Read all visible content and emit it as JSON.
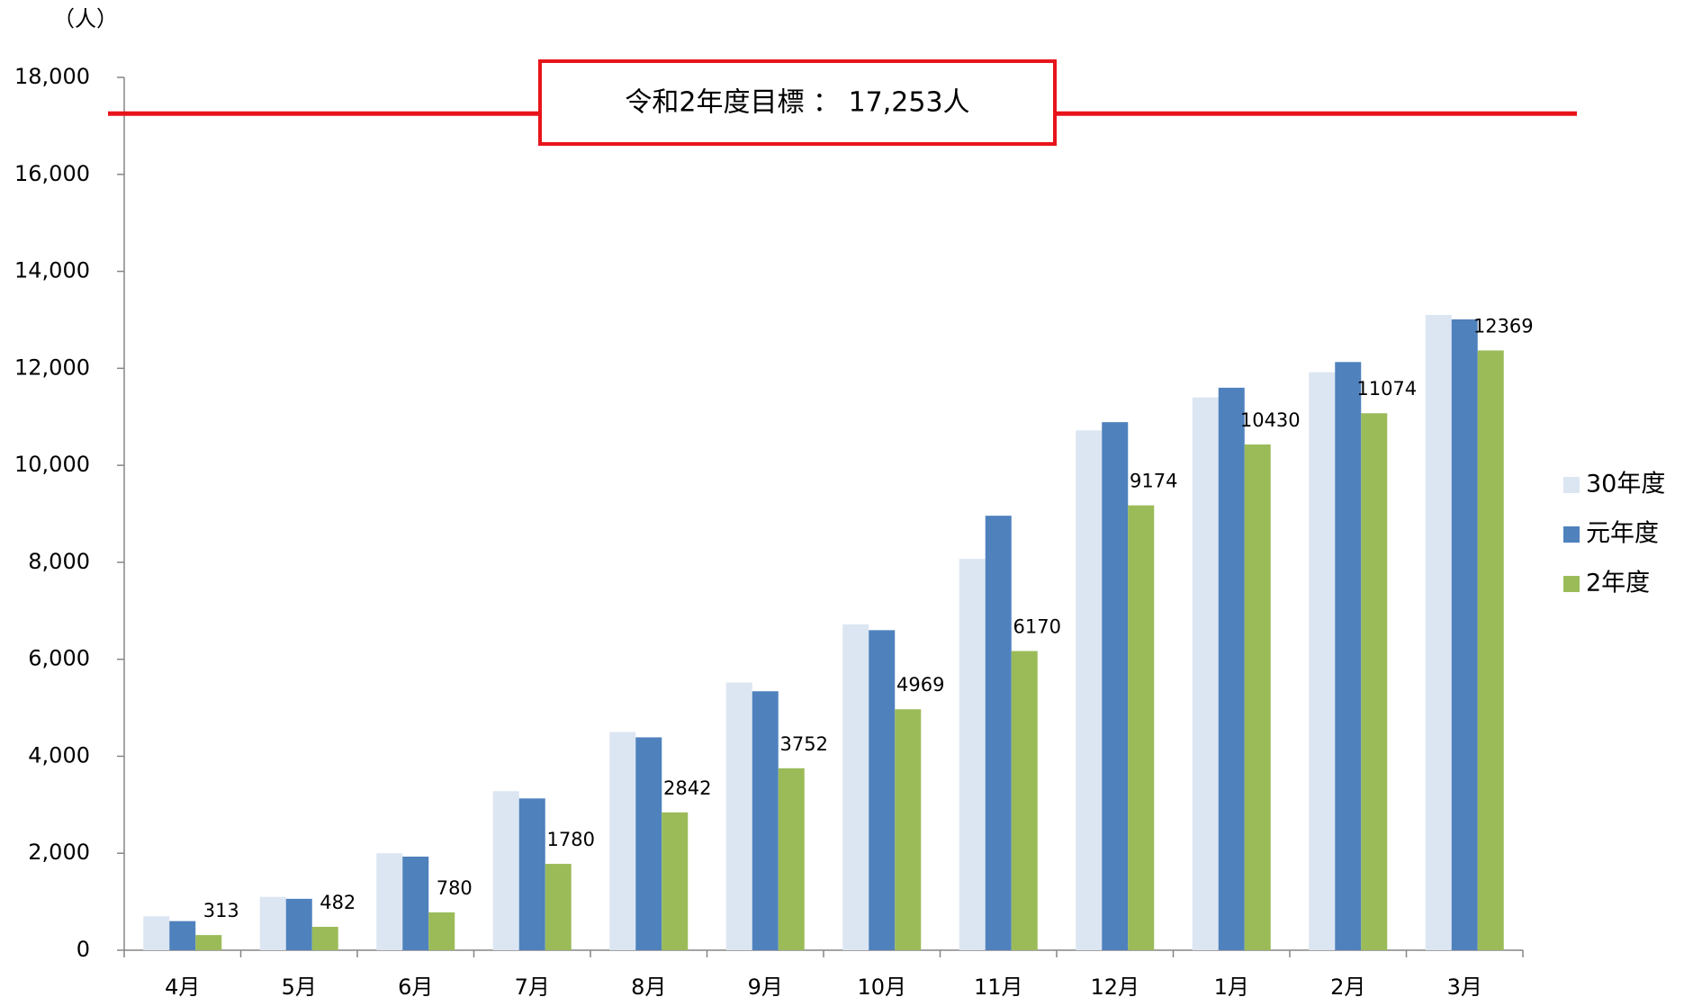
{
  "chart_data": {
    "type": "bar",
    "y_unit_label": "（人）",
    "target": {
      "value": 17253,
      "label": "令和2年度目標 ： 17,253人",
      "color": "#e8141b"
    },
    "categories": [
      "4月",
      "5月",
      "6月",
      "7月",
      "8月",
      "9月",
      "10月",
      "11月",
      "12月",
      "1月",
      "2月",
      "3月"
    ],
    "series": [
      {
        "name": "30年度",
        "color": "#dce6f2",
        "values": [
          700,
          1100,
          2000,
          3280,
          4500,
          5520,
          6720,
          8070,
          10720,
          11400,
          11920,
          13100
        ]
      },
      {
        "name": "元年度",
        "color": "#4f81bd",
        "values": [
          600,
          1060,
          1930,
          3130,
          4390,
          5340,
          6600,
          8960,
          10890,
          11600,
          12130,
          13010
        ]
      },
      {
        "name": "2年度",
        "color": "#9bbb59",
        "values": [
          313,
          482,
          780,
          1780,
          2842,
          3752,
          4969,
          6170,
          9174,
          10430,
          11074,
          12369
        ],
        "show_labels": true
      }
    ],
    "ylim": [
      0,
      18000
    ],
    "yticks": [
      0,
      {
        "value": 2000,
        "label": "2,000"
      },
      {
        "value": 4000,
        "label": "4,000"
      },
      {
        "value": 6000,
        "label": "6,000"
      },
      {
        "value": 8000,
        "label": "8,000"
      },
      {
        "value": 10000,
        "label": "10,000"
      },
      {
        "value": 12000,
        "label": "12,000"
      },
      {
        "value": 14000,
        "label": "14,000"
      },
      {
        "value": 16000,
        "label": "16,000"
      },
      {
        "value": 18000,
        "label": "18,000"
      }
    ],
    "legend": "right"
  }
}
